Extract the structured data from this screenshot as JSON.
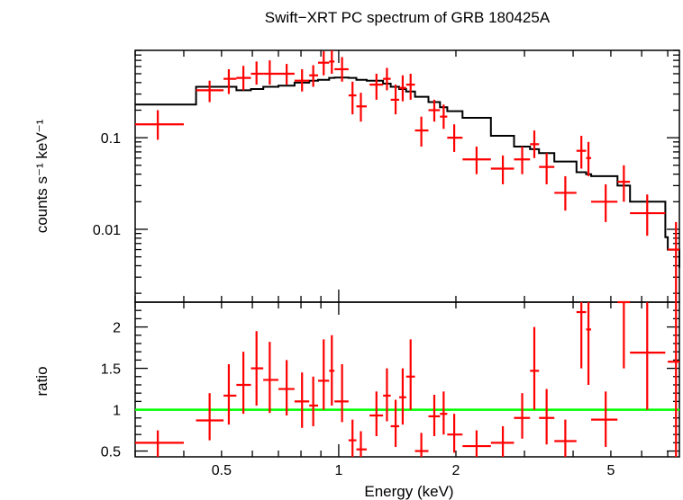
{
  "chart_data": [
    {
      "type": "scatter",
      "title": "Swift−XRT PC spectrum of GRB 180425A",
      "ylabel": "counts s⁻¹ keV⁻¹",
      "yscale": "log",
      "xscale": "log",
      "xlim": [
        0.3,
        7.5
      ],
      "ylim": [
        0.0016,
        0.9
      ],
      "yticks": [
        {
          "v": 0.01,
          "label": "0.01"
        },
        {
          "v": 0.1,
          "label": "0.1"
        }
      ],
      "series": [
        {
          "style": "error-crosses",
          "color": "#ff0000",
          "points": [
            {
              "x": 0.343,
              "xlo": 0.3,
              "xhi": 0.4,
              "y": 0.14,
              "ylo": 0.095,
              "yhi": 0.2
            },
            {
              "x": 0.466,
              "xlo": 0.43,
              "xhi": 0.506,
              "y": 0.33,
              "ylo": 0.245,
              "yhi": 0.42
            },
            {
              "x": 0.522,
              "xlo": 0.506,
              "xhi": 0.546,
              "y": 0.44,
              "ylo": 0.3,
              "yhi": 0.56
            },
            {
              "x": 0.569,
              "xlo": 0.546,
              "xhi": 0.595,
              "y": 0.45,
              "ylo": 0.33,
              "yhi": 0.61
            },
            {
              "x": 0.615,
              "xlo": 0.595,
              "xhi": 0.64,
              "y": 0.5,
              "ylo": 0.38,
              "yhi": 0.68
            },
            {
              "x": 0.665,
              "xlo": 0.64,
              "xhi": 0.7,
              "y": 0.5,
              "ylo": 0.38,
              "yhi": 0.7
            },
            {
              "x": 0.735,
              "xlo": 0.7,
              "xhi": 0.77,
              "y": 0.5,
              "ylo": 0.38,
              "yhi": 0.64
            },
            {
              "x": 0.805,
              "xlo": 0.77,
              "xhi": 0.84,
              "y": 0.42,
              "ylo": 0.32,
              "yhi": 0.56
            },
            {
              "x": 0.86,
              "xlo": 0.84,
              "xhi": 0.885,
              "y": 0.48,
              "ylo": 0.36,
              "yhi": 0.62
            },
            {
              "x": 0.915,
              "xlo": 0.885,
              "xhi": 0.945,
              "y": 0.66,
              "ylo": 0.48,
              "yhi": 0.88
            },
            {
              "x": 0.96,
              "xlo": 0.945,
              "xhi": 0.975,
              "y": 0.68,
              "ylo": 0.5,
              "yhi": 0.9
            },
            {
              "x": 1.02,
              "xlo": 0.975,
              "xhi": 1.06,
              "y": 0.56,
              "ylo": 0.41,
              "yhi": 0.76
            },
            {
              "x": 1.085,
              "xlo": 1.06,
              "xhi": 1.11,
              "y": 0.29,
              "ylo": 0.18,
              "yhi": 0.41
            },
            {
              "x": 1.14,
              "xlo": 1.11,
              "xhi": 1.18,
              "y": 0.22,
              "ylo": 0.15,
              "yhi": 0.31
            },
            {
              "x": 1.25,
              "xlo": 1.2,
              "xhi": 1.3,
              "y": 0.38,
              "ylo": 0.26,
              "yhi": 0.5
            },
            {
              "x": 1.33,
              "xlo": 1.3,
              "xhi": 1.36,
              "y": 0.44,
              "ylo": 0.33,
              "yhi": 0.58
            },
            {
              "x": 1.4,
              "xlo": 1.36,
              "xhi": 1.43,
              "y": 0.26,
              "ylo": 0.18,
              "yhi": 0.38
            },
            {
              "x": 1.46,
              "xlo": 1.43,
              "xhi": 1.49,
              "y": 0.35,
              "ylo": 0.25,
              "yhi": 0.48
            },
            {
              "x": 1.53,
              "xlo": 1.49,
              "xhi": 1.57,
              "y": 0.38,
              "ylo": 0.26,
              "yhi": 0.5
            },
            {
              "x": 1.63,
              "xlo": 1.57,
              "xhi": 1.7,
              "y": 0.12,
              "ylo": 0.08,
              "yhi": 0.17
            },
            {
              "x": 1.76,
              "xlo": 1.7,
              "xhi": 1.82,
              "y": 0.2,
              "ylo": 0.15,
              "yhi": 0.26
            },
            {
              "x": 1.86,
              "xlo": 1.82,
              "xhi": 1.9,
              "y": 0.17,
              "ylo": 0.125,
              "yhi": 0.23
            },
            {
              "x": 1.98,
              "xlo": 1.9,
              "xhi": 2.08,
              "y": 0.1,
              "ylo": 0.07,
              "yhi": 0.14
            },
            {
              "x": 2.26,
              "xlo": 2.08,
              "xhi": 2.46,
              "y": 0.058,
              "ylo": 0.04,
              "yhi": 0.08
            },
            {
              "x": 2.64,
              "xlo": 2.46,
              "xhi": 2.82,
              "y": 0.046,
              "ylo": 0.031,
              "yhi": 0.064
            },
            {
              "x": 2.96,
              "xlo": 2.82,
              "xhi": 3.1,
              "y": 0.058,
              "ylo": 0.04,
              "yhi": 0.08
            },
            {
              "x": 3.18,
              "xlo": 3.1,
              "xhi": 3.27,
              "y": 0.085,
              "ylo": 0.06,
              "yhi": 0.12
            },
            {
              "x": 3.42,
              "xlo": 3.27,
              "xhi": 3.58,
              "y": 0.048,
              "ylo": 0.031,
              "yhi": 0.068
            },
            {
              "x": 3.82,
              "xlo": 3.58,
              "xhi": 4.08,
              "y": 0.025,
              "ylo": 0.016,
              "yhi": 0.038
            },
            {
              "x": 4.2,
              "xlo": 4.08,
              "xhi": 4.32,
              "y": 0.072,
              "ylo": 0.046,
              "yhi": 0.105
            },
            {
              "x": 4.38,
              "xlo": 4.32,
              "xhi": 4.45,
              "y": 0.06,
              "ylo": 0.038,
              "yhi": 0.09
            },
            {
              "x": 4.85,
              "xlo": 4.45,
              "xhi": 5.2,
              "y": 0.02,
              "ylo": 0.012,
              "yhi": 0.031
            },
            {
              "x": 5.4,
              "xlo": 5.2,
              "xhi": 5.6,
              "y": 0.033,
              "ylo": 0.02,
              "yhi": 0.05
            },
            {
              "x": 6.2,
              "xlo": 5.6,
              "xhi": 6.9,
              "y": 0.015,
              "ylo": 0.0085,
              "yhi": 0.024
            },
            {
              "x": 7.35,
              "xlo": 7.0,
              "xhi": 7.5,
              "y": 0.006,
              "ylo": 0.0016,
              "yhi": 0.012
            }
          ]
        },
        {
          "style": "step",
          "color": "#000000",
          "edges": [
            0.3,
            0.43,
            0.546,
            0.595,
            0.64,
            0.7,
            0.77,
            0.84,
            0.885,
            0.945,
            0.975,
            1.06,
            1.11,
            1.18,
            1.3,
            1.36,
            1.43,
            1.49,
            1.57,
            1.7,
            1.82,
            1.9,
            2.08,
            2.46,
            2.82,
            3.1,
            3.27,
            3.58,
            4.08,
            4.32,
            4.45,
            5.2,
            5.6,
            6.9,
            7.0,
            7.5
          ],
          "values": [
            0.23,
            0.36,
            0.33,
            0.34,
            0.36,
            0.37,
            0.4,
            0.42,
            0.43,
            0.45,
            0.455,
            0.45,
            0.43,
            0.42,
            0.39,
            0.36,
            0.34,
            0.32,
            0.28,
            0.245,
            0.215,
            0.195,
            0.165,
            0.105,
            0.08,
            0.075,
            0.068,
            0.055,
            0.042,
            0.04,
            0.038,
            0.03,
            0.02,
            0.0082,
            0.006,
            0.0038
          ]
        }
      ]
    },
    {
      "type": "scatter",
      "xlabel": "Energy (keV)",
      "ylabel": "ratio",
      "xscale": "log",
      "xlim": [
        0.3,
        7.5
      ],
      "ylim": [
        0.43,
        2.3
      ],
      "xticks": [
        {
          "v": 0.5,
          "label": "0.5"
        },
        {
          "v": 1,
          "label": "1"
        },
        {
          "v": 2,
          "label": "2"
        },
        {
          "v": 5,
          "label": "5"
        }
      ],
      "yticks": [
        {
          "v": 0.5,
          "label": "0.5"
        },
        {
          "v": 1,
          "label": "1"
        },
        {
          "v": 1.5,
          "label": "1.5"
        },
        {
          "v": 2,
          "label": "2"
        }
      ],
      "reference_line": {
        "y": 1,
        "color": "#00ff00"
      },
      "series": [
        {
          "style": "error-crosses",
          "color": "#ff0000",
          "points": [
            {
              "x": 0.343,
              "xlo": 0.3,
              "xhi": 0.4,
              "y": 0.6,
              "ylo": 0.43,
              "yhi": 0.75
            },
            {
              "x": 0.466,
              "xlo": 0.43,
              "xhi": 0.506,
              "y": 0.87,
              "ylo": 0.63,
              "yhi": 1.2
            },
            {
              "x": 0.522,
              "xlo": 0.506,
              "xhi": 0.546,
              "y": 1.17,
              "ylo": 0.82,
              "yhi": 1.55
            },
            {
              "x": 0.569,
              "xlo": 0.546,
              "xhi": 0.595,
              "y": 1.3,
              "ylo": 0.95,
              "yhi": 1.7
            },
            {
              "x": 0.615,
              "xlo": 0.595,
              "xhi": 0.64,
              "y": 1.5,
              "ylo": 1.05,
              "yhi": 1.95
            },
            {
              "x": 0.665,
              "xlo": 0.64,
              "xhi": 0.7,
              "y": 1.36,
              "ylo": 0.96,
              "yhi": 1.82
            },
            {
              "x": 0.735,
              "xlo": 0.7,
              "xhi": 0.77,
              "y": 1.25,
              "ylo": 0.93,
              "yhi": 1.6
            },
            {
              "x": 0.805,
              "xlo": 0.77,
              "xhi": 0.84,
              "y": 1.1,
              "ylo": 0.78,
              "yhi": 1.45
            },
            {
              "x": 0.86,
              "xlo": 0.84,
              "xhi": 0.885,
              "y": 1.05,
              "ylo": 0.8,
              "yhi": 1.4
            },
            {
              "x": 0.915,
              "xlo": 0.885,
              "xhi": 0.945,
              "y": 1.35,
              "ylo": 1.0,
              "yhi": 1.85
            },
            {
              "x": 0.96,
              "xlo": 0.945,
              "xhi": 0.975,
              "y": 1.47,
              "ylo": 1.05,
              "yhi": 1.9
            },
            {
              "x": 1.02,
              "xlo": 0.975,
              "xhi": 1.06,
              "y": 1.1,
              "ylo": 0.85,
              "yhi": 1.55
            },
            {
              "x": 1.085,
              "xlo": 1.06,
              "xhi": 1.11,
              "y": 0.63,
              "ylo": 0.4,
              "yhi": 0.88
            },
            {
              "x": 1.14,
              "xlo": 1.11,
              "xhi": 1.18,
              "y": 0.52,
              "ylo": 0.35,
              "yhi": 0.74
            },
            {
              "x": 1.25,
              "xlo": 1.2,
              "xhi": 1.3,
              "y": 0.93,
              "ylo": 0.68,
              "yhi": 1.22
            },
            {
              "x": 1.33,
              "xlo": 1.3,
              "xhi": 1.36,
              "y": 1.17,
              "ylo": 0.86,
              "yhi": 1.5
            },
            {
              "x": 1.4,
              "xlo": 1.36,
              "xhi": 1.43,
              "y": 0.8,
              "ylo": 0.55,
              "yhi": 1.12
            },
            {
              "x": 1.46,
              "xlo": 1.43,
              "xhi": 1.49,
              "y": 1.15,
              "ylo": 0.82,
              "yhi": 1.5
            },
            {
              "x": 1.53,
              "xlo": 1.49,
              "xhi": 1.57,
              "y": 1.4,
              "ylo": 1.0,
              "yhi": 1.85
            },
            {
              "x": 1.63,
              "xlo": 1.57,
              "xhi": 1.7,
              "y": 0.5,
              "ylo": 0.35,
              "yhi": 0.72
            },
            {
              "x": 1.76,
              "xlo": 1.7,
              "xhi": 1.82,
              "y": 0.92,
              "ylo": 0.68,
              "yhi": 1.18
            },
            {
              "x": 1.86,
              "xlo": 1.82,
              "xhi": 1.9,
              "y": 0.95,
              "ylo": 0.7,
              "yhi": 1.22
            },
            {
              "x": 1.98,
              "xlo": 1.9,
              "xhi": 2.08,
              "y": 0.7,
              "ylo": 0.48,
              "yhi": 0.95
            },
            {
              "x": 2.26,
              "xlo": 2.08,
              "xhi": 2.46,
              "y": 0.56,
              "ylo": 0.4,
              "yhi": 0.75
            },
            {
              "x": 2.64,
              "xlo": 2.46,
              "xhi": 2.82,
              "y": 0.6,
              "ylo": 0.4,
              "yhi": 0.8
            },
            {
              "x": 2.96,
              "xlo": 2.82,
              "xhi": 3.1,
              "y": 0.9,
              "ylo": 0.65,
              "yhi": 1.2
            },
            {
              "x": 3.18,
              "xlo": 3.1,
              "xhi": 3.27,
              "y": 1.47,
              "ylo": 1.0,
              "yhi": 2.0
            },
            {
              "x": 3.42,
              "xlo": 3.27,
              "xhi": 3.58,
              "y": 0.9,
              "ylo": 0.58,
              "yhi": 1.25
            },
            {
              "x": 3.82,
              "xlo": 3.58,
              "xhi": 4.08,
              "y": 0.62,
              "ylo": 0.4,
              "yhi": 0.88
            },
            {
              "x": 4.2,
              "xlo": 4.08,
              "xhi": 4.32,
              "y": 2.18,
              "ylo": 1.5,
              "yhi": 2.3
            },
            {
              "x": 4.38,
              "xlo": 4.32,
              "xhi": 4.45,
              "y": 1.97,
              "ylo": 1.3,
              "yhi": 2.3
            },
            {
              "x": 4.85,
              "xlo": 4.45,
              "xhi": 5.2,
              "y": 0.88,
              "ylo": 0.55,
              "yhi": 1.22
            },
            {
              "x": 5.4,
              "xlo": 5.2,
              "xhi": 5.6,
              "y": 2.3,
              "ylo": 1.5,
              "yhi": 2.3
            },
            {
              "x": 6.2,
              "xlo": 5.6,
              "xhi": 6.9,
              "y": 1.69,
              "ylo": 1.0,
              "yhi": 2.3
            },
            {
              "x": 7.35,
              "xlo": 7.0,
              "xhi": 7.5,
              "y": 1.58,
              "ylo": 0.4,
              "yhi": 2.3
            }
          ]
        }
      ]
    }
  ]
}
